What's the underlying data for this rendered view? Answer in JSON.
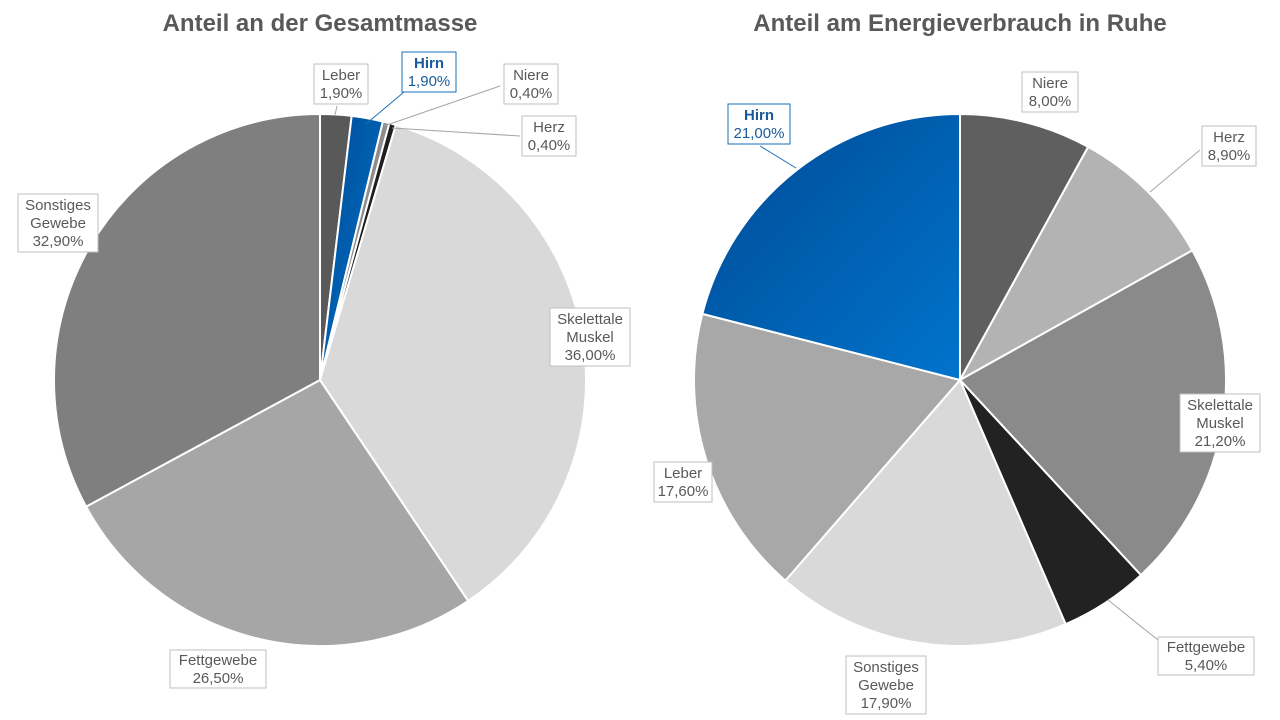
{
  "chart_data": [
    {
      "type": "pie",
      "title": "Anteil an der Gesamtmasse",
      "slices": [
        {
          "label": [
            "Leber"
          ],
          "value_label": "1,90%",
          "value": 1.9,
          "color": "#595959"
        },
        {
          "label": [
            "Hirn"
          ],
          "value_label": "1,90%",
          "value": 1.9,
          "color": "#0070c0",
          "highlight": true
        },
        {
          "label": [
            "Niere"
          ],
          "value_label": "0,40%",
          "value": 0.4,
          "color": "#8c8c8c"
        },
        {
          "label": [
            "Herz"
          ],
          "value_label": "0,40%",
          "value": 0.4,
          "color": "#1f1f1f"
        },
        {
          "label": [
            "Skelettale",
            "Muskel"
          ],
          "value_label": "36,00%",
          "value": 36.0,
          "color": "#d9d9d9"
        },
        {
          "label": [
            "Fettgewebe"
          ],
          "value_label": "26,50%",
          "value": 26.5,
          "color": "#a6a6a6"
        },
        {
          "label": [
            "Sonstiges",
            "Gewebe"
          ],
          "value_label": "32,90%",
          "value": 32.9,
          "color": "#7f7f7f"
        }
      ]
    },
    {
      "type": "pie",
      "title": "Anteil am Energieverbrauch in Ruhe",
      "slices": [
        {
          "label": [
            "Niere"
          ],
          "value_label": "8,00%",
          "value": 8.0,
          "color": "#5f5f5f"
        },
        {
          "label": [
            "Herz"
          ],
          "value_label": "8,90%",
          "value": 8.9,
          "color": "#b3b3b3"
        },
        {
          "label": [
            "Skelettale",
            "Muskel"
          ],
          "value_label": "21,20%",
          "value": 21.2,
          "color": "#8a8a8a"
        },
        {
          "label": [
            "Fettgewebe"
          ],
          "value_label": "5,40%",
          "value": 5.4,
          "color": "#222222"
        },
        {
          "label": [
            "Sonstiges",
            "Gewebe"
          ],
          "value_label": "17,90%",
          "value": 17.9,
          "color": "#d9d9d9"
        },
        {
          "label": [
            "Leber"
          ],
          "value_label": "17,60%",
          "value": 17.6,
          "color": "#a8a8a8"
        },
        {
          "label": [
            "Hirn"
          ],
          "value_label": "21,00%",
          "value": 21.0,
          "color": "#0070c0",
          "highlight": true
        }
      ]
    }
  ]
}
